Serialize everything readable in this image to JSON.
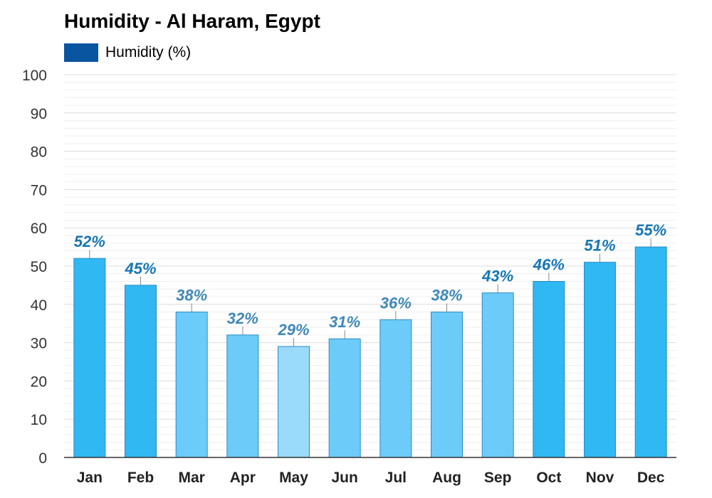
{
  "chart_data": {
    "type": "bar",
    "title": "Humidity - Al Haram, Egypt",
    "categories": [
      "Jan",
      "Feb",
      "Mar",
      "Apr",
      "May",
      "Jun",
      "Jul",
      "Aug",
      "Sep",
      "Oct",
      "Nov",
      "Dec"
    ],
    "series": [
      {
        "name": "Humidity (%)",
        "values": [
          52,
          45,
          38,
          32,
          29,
          31,
          36,
          38,
          43,
          46,
          51,
          55
        ],
        "labels": [
          "52%",
          "45%",
          "38%",
          "32%",
          "29%",
          "31%",
          "36%",
          "38%",
          "43%",
          "46%",
          "51%",
          "55%"
        ]
      }
    ],
    "ylim": [
      0,
      100
    ],
    "yticks": [
      "0",
      "10",
      "20",
      "30",
      "40",
      "50",
      "60",
      "70",
      "80",
      "90",
      "100"
    ],
    "grid": true,
    "legend_position": "top-left",
    "colors": {
      "legend_swatch": "#0a55a0",
      "bar_high": "#30b8f2",
      "bar_mid": "#6ccbf8",
      "bar_low": "#9adafa",
      "bar_stroke": "#2a8ac8",
      "label_dark": "#1577b4",
      "label_light": "#3f88b8",
      "grid": "#e4e4e4",
      "axis": "#333333"
    }
  }
}
